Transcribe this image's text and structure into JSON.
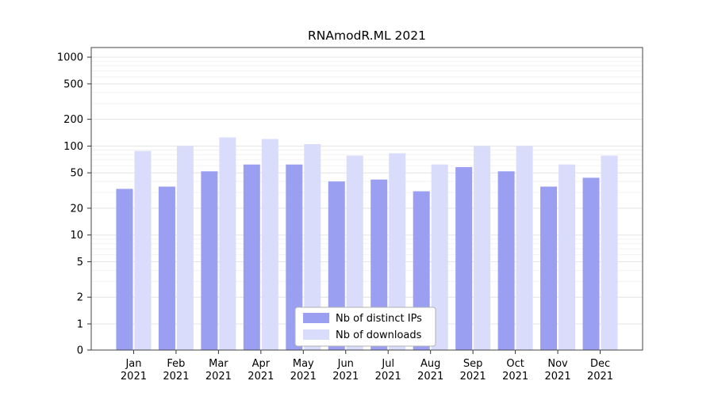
{
  "page": {
    "background": "#ffffff"
  },
  "chart_data": {
    "type": "bar",
    "title": "RNAmodR.ML 2021",
    "categories": [
      "Jan",
      "Feb",
      "Mar",
      "Apr",
      "May",
      "Jun",
      "Jul",
      "Aug",
      "Sep",
      "Oct",
      "Nov",
      "Dec"
    ],
    "year_label": "2021",
    "series": [
      {
        "name": "Nb of distinct IPs",
        "color": "#9a9ff1",
        "values": [
          33,
          35,
          52,
          62,
          62,
          40,
          42,
          31,
          58,
          52,
          35,
          44
        ]
      },
      {
        "name": "Nb of downloads",
        "color": "#d9dcfb",
        "values": [
          88,
          100,
          125,
          120,
          105,
          78,
          83,
          62,
          100,
          100,
          62,
          78
        ]
      }
    ],
    "yscale": "symlog",
    "yticks": [
      0,
      1,
      2,
      5,
      10,
      20,
      50,
      100,
      200,
      500,
      1000
    ],
    "ylim": [
      0,
      1000
    ],
    "grid": true,
    "legend_position": "lower center",
    "axis_color": "#444444",
    "tick_color": "#333333",
    "grid_major_color": "#e5e5e5",
    "grid_minor_color": "#f2f2f2",
    "legend_border_color": "#b0b0b0"
  }
}
